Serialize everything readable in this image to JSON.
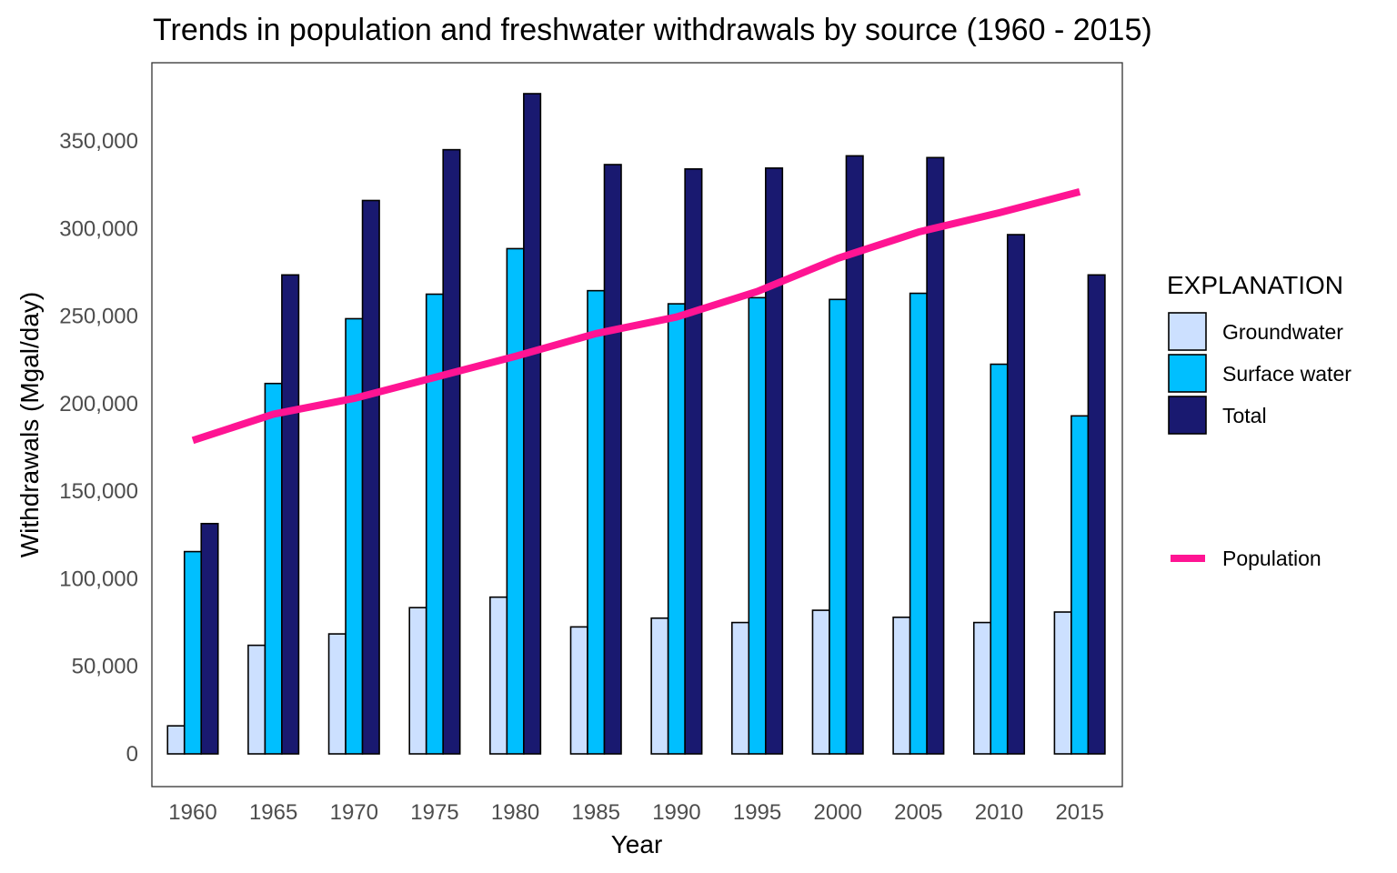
{
  "chart_data": {
    "type": "bar",
    "title": "Trends in population and freshwater withdrawals by source  (1960 - 2015)",
    "xlabel": "Year",
    "ylabel": "Withdrawals (Mgal/day)",
    "ylim": [
      0,
      385000
    ],
    "y_ticks": [
      0,
      50000,
      100000,
      150000,
      200000,
      250000,
      300000,
      350000
    ],
    "y_tick_labels": [
      "0",
      "50,000",
      "100,000",
      "150,000",
      "200,000",
      "250,000",
      "300,000",
      "350,000"
    ],
    "categories": [
      "1960",
      "1965",
      "1970",
      "1975",
      "1980",
      "1985",
      "1990",
      "1995",
      "2000",
      "2005",
      "2010",
      "2015"
    ],
    "series": [
      {
        "name": "Groundwater",
        "color": "#cce0ff",
        "values": [
          16000,
          62000,
          68500,
          83500,
          89500,
          72500,
          77500,
          75000,
          82000,
          78000,
          75000,
          81000
        ]
      },
      {
        "name": "Surface water",
        "color": "#00bfff",
        "values": [
          115500,
          211500,
          248500,
          262500,
          288500,
          264500,
          257000,
          260500,
          259500,
          263000,
          222500,
          193000
        ]
      },
      {
        "name": "Total",
        "color": "#191970",
        "values": [
          131500,
          273500,
          316000,
          345000,
          377000,
          336500,
          334000,
          334500,
          341500,
          340500,
          296500,
          273500
        ]
      }
    ],
    "line_series": {
      "name": "Population",
      "color": "#ff1493",
      "values": [
        179000,
        194000,
        203000,
        215000,
        227000,
        240000,
        249500,
        264000,
        283000,
        298000,
        309000,
        321000
      ]
    },
    "legend": {
      "title": "EXPLANATION",
      "placement": "right",
      "items": [
        "Groundwater",
        "Surface water",
        "Total"
      ],
      "line_item": "Population"
    },
    "grid": false
  }
}
